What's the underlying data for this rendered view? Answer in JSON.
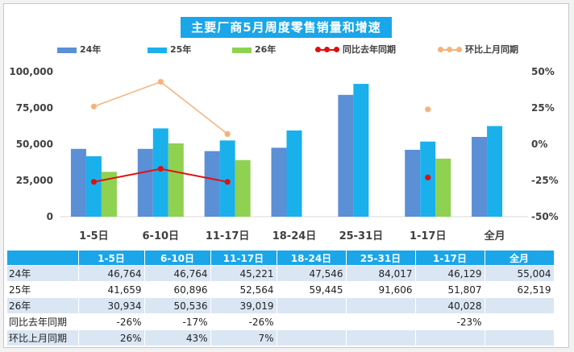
{
  "chart_data": {
    "type": "bar",
    "title": "主要厂商5月周度零售销量和增速",
    "categories": [
      "1-5日",
      "6-10日",
      "11-17日",
      "18-24日",
      "25-31日",
      "1-17日",
      "全月"
    ],
    "series": [
      {
        "name": "24年",
        "kind": "bar",
        "color": "#5b8fd6",
        "axis": "left",
        "values": [
          46764,
          46764,
          45221,
          47546,
          84017,
          46129,
          55004
        ]
      },
      {
        "name": "25年",
        "kind": "bar",
        "color": "#1ab0ec",
        "axis": "left",
        "values": [
          41659,
          60896,
          52564,
          59445,
          91606,
          51807,
          62519
        ]
      },
      {
        "name": "26年",
        "kind": "bar",
        "color": "#8fd150",
        "axis": "left",
        "values": [
          30934,
          50536,
          39019,
          null,
          null,
          40028,
          null
        ]
      },
      {
        "name": "同比去年同期",
        "kind": "line",
        "color": "#e01010",
        "axis": "right",
        "values": [
          -26,
          -17,
          -26,
          null,
          null,
          -23,
          null
        ]
      },
      {
        "name": "环比上月同期",
        "kind": "line",
        "color": "#f7b27a",
        "axis": "right",
        "values": [
          26,
          43,
          7,
          null,
          null,
          24,
          null
        ]
      }
    ],
    "left_axis": {
      "min": 0,
      "max": 100000,
      "ticks": [
        0,
        25000,
        50000,
        75000,
        100000
      ],
      "tick_labels": [
        "0",
        "25,000",
        "50,000",
        "75,000",
        "100,000"
      ]
    },
    "right_axis": {
      "min": -50,
      "max": 50,
      "ticks": [
        -50,
        -25,
        0,
        25,
        50
      ],
      "tick_labels": [
        "-50%",
        "-25%",
        "0%",
        "25%",
        "50%"
      ]
    },
    "line_groups": [
      [
        0,
        1,
        2
      ],
      [
        5
      ]
    ],
    "legend_position": "top",
    "grid": false
  },
  "table": {
    "header": [
      "",
      "1-5日",
      "6-10日",
      "11-17日",
      "18-24日",
      "25-31日",
      "1-17日",
      "全月"
    ],
    "rows": [
      {
        "label": "24年",
        "cells": [
          "46,764",
          "46,764",
          "45,221",
          "47,546",
          "84,017",
          "46,129",
          "55,004"
        ]
      },
      {
        "label": "25年",
        "cells": [
          "41,659",
          "60,896",
          "52,564",
          "59,445",
          "91,606",
          "51,807",
          "62,519"
        ]
      },
      {
        "label": "26年",
        "cells": [
          "30,934",
          "50,536",
          "39,019",
          "",
          "",
          "40,028",
          ""
        ]
      },
      {
        "label": "同比去年同期",
        "cells": [
          "-26%",
          "-17%",
          "-26%",
          "",
          "",
          "-23%",
          ""
        ]
      },
      {
        "label": "环比上月同期",
        "cells": [
          "26%",
          "43%",
          "7%",
          "",
          "",
          "",
          ""
        ]
      }
    ]
  }
}
